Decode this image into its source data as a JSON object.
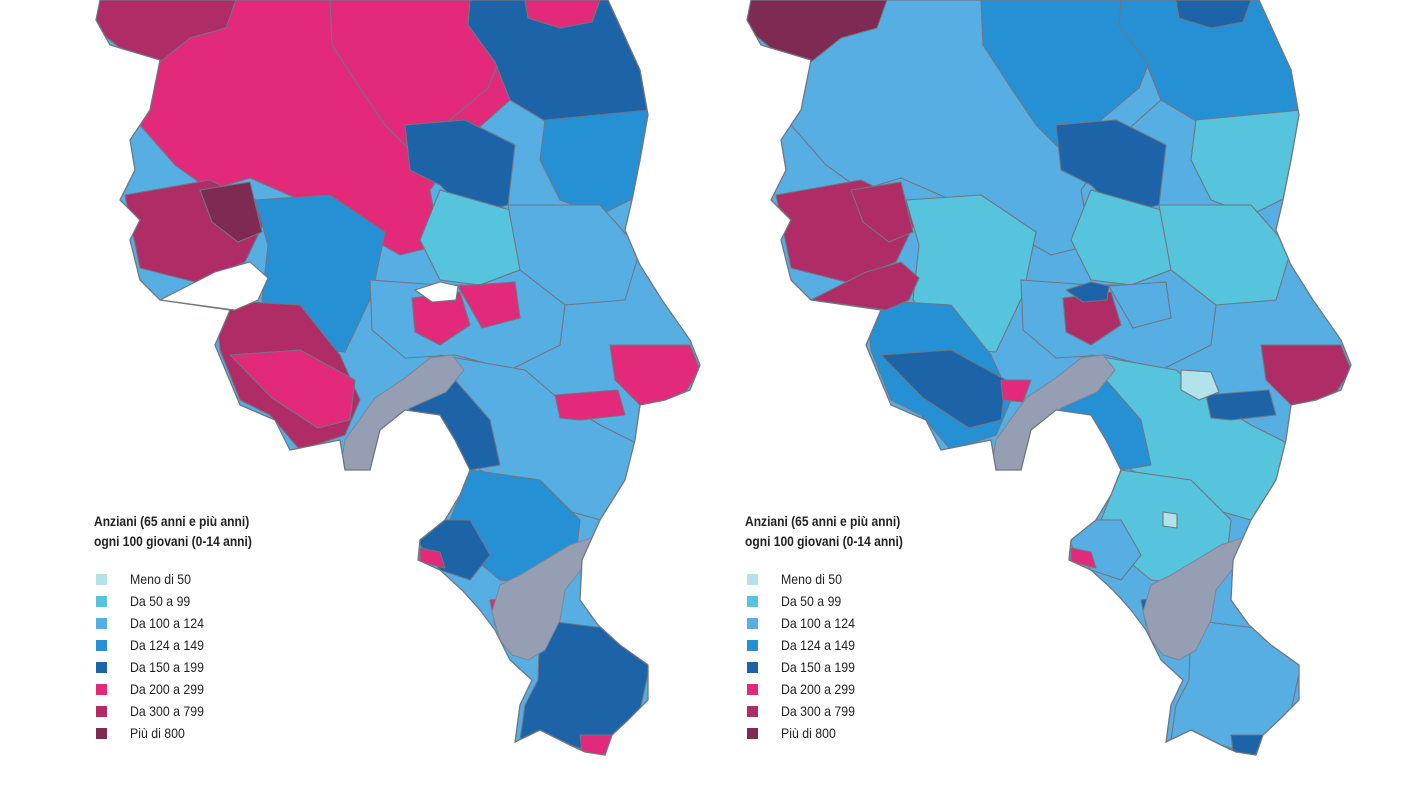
{
  "legend": {
    "title_line1": "Anziani (65 anni e più anni)",
    "title_line2": "ogni 100 giovani (0-14 anni)",
    "classes": [
      {
        "label": "Meno di 50",
        "color": "#b2e2ea"
      },
      {
        "label": "Da 50 a 99",
        "color": "#55c4dc"
      },
      {
        "label": "Da 100 a 124",
        "color": "#57aee3"
      },
      {
        "label": "Da 124 a 149",
        "color": "#2690d5"
      },
      {
        "label": "Da 150 a 199",
        "color": "#1c63a8"
      },
      {
        "label": "Da 200 a 299",
        "color": "#e2297a"
      },
      {
        "label": "Da 300 a 799",
        "color": "#b02c66"
      },
      {
        "label": "Più di 800",
        "color": "#7e2a52"
      }
    ]
  },
  "colors": {
    "lake": "#959eb3",
    "border": "#6f7682",
    "background": "#ffffff"
  },
  "maps": [
    {
      "panel": "left"
    },
    {
      "panel": "right"
    }
  ]
}
